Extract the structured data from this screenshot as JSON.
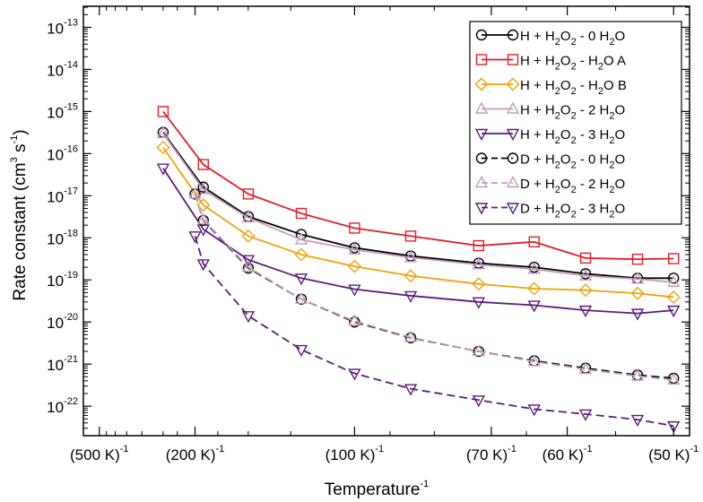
{
  "chart_data": {
    "type": "line",
    "title": "",
    "xlabel": "Temperature",
    "xlabel_sup": "-1",
    "ylabel": "Rate constant (cm",
    "ylabel_sup1": "3",
    "ylabel_mid": " s",
    "ylabel_sup2": "-1",
    "ylabel_end": ")",
    "x_unit": "1/K",
    "x_range": [
      0.0015,
      0.0205
    ],
    "y_log_range": [
      -22.7,
      -12.5
    ],
    "y_scale": "log",
    "x_ticks": [
      {
        "value": 0.002,
        "base": "(500 K)",
        "sup": "-1"
      },
      {
        "value": 0.005,
        "base": "(200 K)",
        "sup": "-1"
      },
      {
        "value": 0.01,
        "base": "(100 K)",
        "sup": "-1"
      },
      {
        "value": 0.0142857,
        "base": "(70 K)",
        "sup": "-1"
      },
      {
        "value": 0.0166667,
        "base": "(60 K)",
        "sup": "-1"
      },
      {
        "value": 0.02,
        "base": "(50 K)",
        "sup": "-1"
      }
    ],
    "y_ticks": [
      {
        "exp": -13,
        "base": "10",
        "sup": "-13"
      },
      {
        "exp": -14,
        "base": "10",
        "sup": "-14"
      },
      {
        "exp": -15,
        "base": "10",
        "sup": "-15"
      },
      {
        "exp": -16,
        "base": "10",
        "sup": "-16"
      },
      {
        "exp": -17,
        "base": "10",
        "sup": "-17"
      },
      {
        "exp": -18,
        "base": "10",
        "sup": "-18"
      },
      {
        "exp": -19,
        "base": "10",
        "sup": "-19"
      },
      {
        "exp": -20,
        "base": "10",
        "sup": "-20"
      },
      {
        "exp": -21,
        "base": "10",
        "sup": "-21"
      },
      {
        "exp": -22,
        "base": "10",
        "sup": "-22"
      }
    ],
    "legend_position": "top-right",
    "series": [
      {
        "name": "H + H2O2 - 0 H2O",
        "label_main": "H + H",
        "label_sub": "2",
        "label_mid": "O",
        "label_sub2": "2",
        "label_end": "  - 0 H",
        "label_sub3": "2",
        "label_tail": "O",
        "color": "#000000",
        "marker": "circle",
        "dash": false,
        "x": [
          0.004,
          0.00526,
          0.00667,
          0.00833,
          0.01,
          0.01176,
          0.01389,
          0.01563,
          0.01724,
          0.01887,
          0.02
        ],
        "y": [
          3.2e-16,
          1.6e-17,
          3.2e-18,
          1.2e-18,
          5.8e-19,
          3.7e-19,
          2.5e-19,
          2e-19,
          1.4e-19,
          1.1e-19,
          1.1e-19
        ]
      },
      {
        "name": "H + H2O2 - H2O A",
        "label_main": "H + H",
        "label_sub": "2",
        "label_mid": "O",
        "label_sub2": "2",
        "label_end": "  - H",
        "label_sub3": "2",
        "label_tail": "O A",
        "color": "#e21f26",
        "marker": "square",
        "dash": false,
        "x": [
          0.004,
          0.00526,
          0.00667,
          0.00833,
          0.01,
          0.01176,
          0.01389,
          0.01563,
          0.01724,
          0.01887,
          0.02
        ],
        "y": [
          1e-15,
          5.5e-17,
          1.1e-17,
          3.8e-18,
          1.7e-18,
          1.1e-18,
          6.5e-19,
          8e-19,
          3.3e-19,
          3.1e-19,
          3.2e-19
        ]
      },
      {
        "name": "H + H2O2 - H2O B",
        "label_main": "H + H",
        "label_sub": "2",
        "label_mid": "O",
        "label_sub2": "2",
        "label_end": "  - H",
        "label_sub3": "2",
        "label_tail": "O B",
        "color": "#f0a30a",
        "marker": "diamond",
        "dash": false,
        "x": [
          0.004,
          0.00526,
          0.00667,
          0.00833,
          0.01,
          0.01176,
          0.01389,
          0.01563,
          0.01724,
          0.01887,
          0.02
        ],
        "y": [
          1.4e-16,
          6e-18,
          1.1e-18,
          4e-19,
          2.1e-19,
          1.25e-19,
          8e-20,
          6.2e-20,
          5.7e-20,
          4.8e-20,
          3.9e-20
        ]
      },
      {
        "name": "H + H2O2 - 2 H2O",
        "label_main": "H + H",
        "label_sub": "2",
        "label_mid": "O",
        "label_sub2": "2",
        "label_end": "  - 2 H",
        "label_sub3": "2",
        "label_tail": "O",
        "color": "#c49bbd",
        "marker": "triangle-up",
        "dash": false,
        "x": [
          0.004,
          0.00526,
          0.00667,
          0.00833,
          0.01,
          0.01176,
          0.01389,
          0.01563,
          0.01724,
          0.01887,
          0.02
        ],
        "y": [
          3e-16,
          1.4e-17,
          3e-18,
          9e-19,
          5.2e-19,
          3.4e-19,
          2.3e-19,
          1.8e-19,
          1.25e-19,
          1.05e-19,
          8.8e-20
        ]
      },
      {
        "name": "H + H2O2 - 3 H2O",
        "label_main": "H + H",
        "label_sub": "2",
        "label_mid": "O",
        "label_sub2": "2",
        "label_end": "  - 3 H",
        "label_sub3": "2",
        "label_tail": "O",
        "color": "#5b1a7a",
        "marker": "triangle-down",
        "dash": false,
        "x": [
          0.004,
          0.00526,
          0.00667,
          0.00833,
          0.01,
          0.01176,
          0.01389,
          0.01563,
          0.01724,
          0.01887,
          0.02
        ],
        "y": [
          4.5e-17,
          1.6e-18,
          3e-19,
          1.1e-19,
          6e-20,
          4.2e-20,
          3e-20,
          2.5e-20,
          1.9e-20,
          1.6e-20,
          1.9e-20
        ]
      },
      {
        "name": "D + H2O2 - 0 H2O",
        "label_main": "D + H",
        "label_sub": "2",
        "label_mid": "O",
        "label_sub2": "2",
        "label_end": "  - 0 H",
        "label_sub3": "2",
        "label_tail": "O",
        "color": "#000000",
        "marker": "circle",
        "dash": true,
        "x": [
          0.005,
          0.00526,
          0.00667,
          0.00833,
          0.01,
          0.01176,
          0.01389,
          0.01563,
          0.01724,
          0.01887,
          0.02
        ],
        "y": [
          1.1e-17,
          2.6e-18,
          1.9e-19,
          3.5e-20,
          1e-20,
          4.2e-21,
          2e-21,
          1.2e-21,
          8e-22,
          5.5e-22,
          4.6e-22
        ]
      },
      {
        "name": "D + H2O2 - 2 H2O",
        "label_main": "D + H",
        "label_sub": "2",
        "label_mid": "O",
        "label_sub2": "2",
        "label_end": "  - 2 H",
        "label_sub3": "2",
        "label_tail": "O",
        "color": "#c49bbd",
        "marker": "triangle-up",
        "dash": true,
        "x": [
          0.005,
          0.00526,
          0.00667,
          0.00833,
          0.01,
          0.01176,
          0.01389,
          0.01563,
          0.01724,
          0.01887,
          0.02
        ],
        "y": [
          1.1e-17,
          2.7e-18,
          2e-19,
          3.5e-20,
          1.05e-20,
          4.3e-21,
          2e-21,
          1.15e-21,
          7.5e-22,
          5.2e-22,
          4.2e-22
        ]
      },
      {
        "name": "D + H2O2 - 3 H2O",
        "label_main": "D + H",
        "label_sub": "2",
        "label_mid": "O",
        "label_sub2": "2",
        "label_end": "  - 3 H",
        "label_sub3": "2",
        "label_tail": "O",
        "color": "#5b1a7a",
        "marker": "triangle-down",
        "dash": true,
        "x": [
          0.005,
          0.00526,
          0.00667,
          0.00833,
          0.01,
          0.01176,
          0.01389,
          0.01563,
          0.01724,
          0.01887,
          0.02
        ],
        "y": [
          1.1e-18,
          2.4e-19,
          1.4e-20,
          2.2e-21,
          6e-22,
          2.6e-22,
          1.4e-22,
          8.5e-23,
          6.5e-23,
          4.8e-23,
          3.4e-23
        ]
      }
    ]
  }
}
